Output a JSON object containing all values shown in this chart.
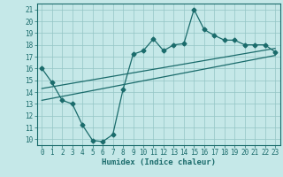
{
  "xlabel": "Humidex (Indice chaleur)",
  "bg_color": "#c5e8e8",
  "grid_color": "#93c5c5",
  "line_color": "#1a6b6b",
  "xlim": [
    -0.5,
    23.5
  ],
  "ylim": [
    9.5,
    21.5
  ],
  "xticks": [
    0,
    1,
    2,
    3,
    4,
    5,
    6,
    7,
    8,
    9,
    10,
    11,
    12,
    13,
    14,
    15,
    16,
    17,
    18,
    19,
    20,
    21,
    22,
    23
  ],
  "yticks": [
    10,
    11,
    12,
    13,
    14,
    15,
    16,
    17,
    18,
    19,
    20,
    21
  ],
  "main_x": [
    0,
    1,
    2,
    3,
    4,
    5,
    6,
    7,
    8,
    9,
    10,
    11,
    12,
    13,
    14,
    15,
    16,
    17,
    18,
    19,
    20,
    21,
    22,
    23
  ],
  "main_y": [
    16.0,
    14.8,
    13.3,
    13.0,
    11.2,
    9.9,
    9.8,
    10.4,
    14.2,
    17.2,
    17.5,
    18.5,
    17.5,
    18.0,
    18.1,
    21.0,
    19.3,
    18.8,
    18.4,
    18.4,
    18.0,
    18.0,
    18.0,
    17.4
  ],
  "line1_x": [
    0,
    23
  ],
  "line1_y": [
    13.3,
    17.1
  ],
  "line2_x": [
    0,
    23
  ],
  "line2_y": [
    14.3,
    17.7
  ],
  "marker_size": 2.5,
  "linewidth": 0.9,
  "tick_fontsize": 5.5,
  "xlabel_fontsize": 6.5
}
